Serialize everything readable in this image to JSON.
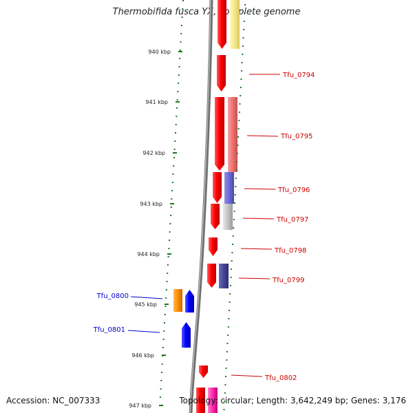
{
  "title": "Thermobifida fusca YX, complete genome",
  "accession_text": "Accession: NC_007333",
  "summary_text": "Topology: circular; Length: 3,642,249 bp; Genes: 3,176",
  "colors": {
    "backbone": "#808080",
    "tick_dots": "#1a7a1a",
    "forward_label": "#cc0000",
    "reverse_label": "#0000cc"
  },
  "kbp_ticks": [
    {
      "label": "940 kbp"
    },
    {
      "label": "941 kbp"
    },
    {
      "label": "942 kbp"
    },
    {
      "label": "943 kbp"
    },
    {
      "label": "944 kbp"
    },
    {
      "label": "945 kbp"
    },
    {
      "label": "946 kbp"
    },
    {
      "label": "947 kbp"
    }
  ],
  "gene_labels": [
    {
      "name": "Tfu_0794",
      "strand": "forward"
    },
    {
      "name": "Tfu_0795",
      "strand": "forward"
    },
    {
      "name": "Tfu_0796",
      "strand": "forward"
    },
    {
      "name": "Tfu_0797",
      "strand": "forward"
    },
    {
      "name": "Tfu_0798",
      "strand": "forward"
    },
    {
      "name": "Tfu_0799",
      "strand": "forward"
    },
    {
      "name": "Tfu_0800",
      "strand": "reverse"
    },
    {
      "name": "Tfu_0801",
      "strand": "reverse"
    },
    {
      "name": "Tfu_0802",
      "strand": "forward"
    }
  ]
}
